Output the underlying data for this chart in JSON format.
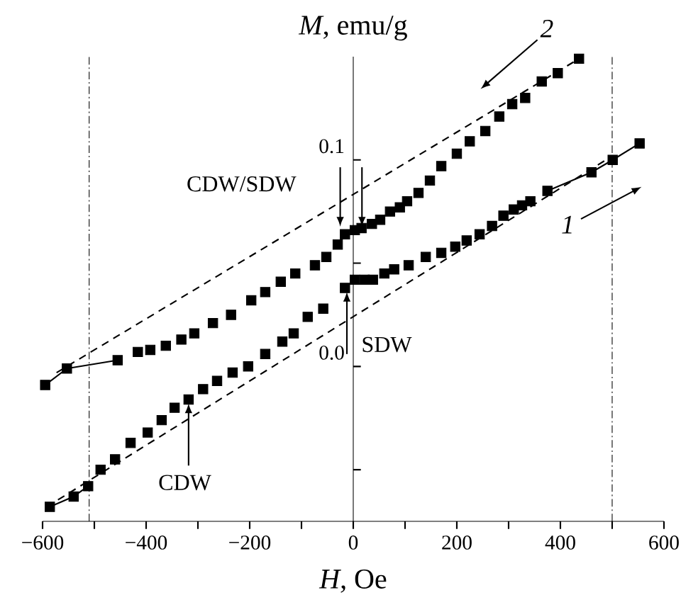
{
  "chart_data": {
    "type": "scatter",
    "xlabel": "*H*, Oe",
    "ylabel": "*M*, emu/g",
    "xlim": [
      -600,
      600
    ],
    "ylim": [
      -0.075,
      0.15
    ],
    "xticks": [
      {
        "value": -600,
        "label": "−600"
      },
      {
        "value": -500,
        "label": null
      },
      {
        "value": -400,
        "label": "−400"
      },
      {
        "value": -300,
        "label": null
      },
      {
        "value": -200,
        "label": "−200"
      },
      {
        "value": -100,
        "label": null
      },
      0,
      {
        "value": 100,
        "label": null
      },
      200,
      {
        "value": 300,
        "label": null
      },
      400,
      {
        "value": 500,
        "label": null
      },
      600
    ],
    "yticks": [
      {
        "value": -0.05,
        "label": null
      },
      {
        "value": 0,
        "label": "0.0"
      },
      {
        "value": 0.05,
        "label": null
      },
      {
        "value": 0.1,
        "label": "0.1"
      }
    ],
    "series": [
      {
        "name": "1",
        "color": "#000000",
        "marker": "square",
        "x": [
          -586,
          -540,
          -512,
          -488,
          -460,
          -430,
          -397,
          -370,
          -345,
          -318,
          -290,
          -263,
          -233,
          -203,
          -170,
          -137,
          -115,
          -88,
          -58,
          -16,
          3,
          22,
          38,
          60,
          79,
          107,
          140,
          170,
          197,
          219,
          244,
          268,
          290,
          310,
          326,
          342,
          375,
          460,
          501,
          553
        ],
        "values": [
          -0.068,
          -0.063,
          -0.058,
          -0.05,
          -0.045,
          -0.037,
          -0.032,
          -0.026,
          -0.02,
          -0.016,
          -0.011,
          -0.007,
          -0.003,
          0.0,
          0.006,
          0.012,
          0.016,
          0.024,
          0.028,
          0.038,
          0.042,
          0.042,
          0.042,
          0.045,
          0.047,
          0.049,
          0.053,
          0.055,
          0.058,
          0.061,
          0.064,
          0.068,
          0.073,
          0.076,
          0.078,
          0.08,
          0.085,
          0.094,
          0.1,
          0.108
        ]
      },
      {
        "name": "2",
        "color": "#000000",
        "marker": "square",
        "x": [
          436,
          395,
          364,
          332,
          307,
          282,
          255,
          225,
          200,
          170,
          148,
          126,
          104,
          90,
          71,
          52,
          36,
          16,
          3,
          -16,
          -30,
          -52,
          -74,
          -112,
          -140,
          -170,
          -197,
          -236,
          -271,
          -307,
          -332,
          -362,
          -392,
          -416,
          -455,
          -553,
          -595
        ],
        "values": [
          0.149,
          0.142,
          0.138,
          0.13,
          0.127,
          0.121,
          0.114,
          0.109,
          0.103,
          0.097,
          0.09,
          0.084,
          0.08,
          0.077,
          0.075,
          0.071,
          0.069,
          0.067,
          0.066,
          0.064,
          0.059,
          0.053,
          0.049,
          0.045,
          0.041,
          0.036,
          0.032,
          0.025,
          0.021,
          0.016,
          0.013,
          0.01,
          0.008,
          0.007,
          0.003,
          -0.001,
          -0.009
        ]
      },
      {
        "color": "#000000",
        "type": "line",
        "marker": "none",
        "line_style": "solid",
        "x": [
          -586,
          -540,
          -512
        ],
        "values": [
          -0.068,
          -0.063,
          -0.058
        ]
      },
      {
        "color": "#000000",
        "type": "line",
        "marker": "none",
        "line_style": "solid",
        "x": [
          375,
          460,
          501,
          553
        ],
        "values": [
          0.085,
          0.094,
          0.1,
          0.108
        ]
      },
      {
        "color": "#000000",
        "type": "line",
        "marker": "none",
        "line_style": "solid",
        "x": [
          -595,
          -553,
          -455
        ],
        "values": [
          -0.009,
          -0.001,
          0.003
        ]
      },
      {
        "color": "#000000",
        "type": "line",
        "marker": "none",
        "line_style": "dashed",
        "x": [
          -573,
          436
        ],
        "values": [
          -0.003,
          0.149
        ]
      },
      {
        "color": "#000000",
        "type": "line",
        "marker": "none",
        "line_style": "dashed",
        "x": [
          -592,
          488
        ],
        "values": [
          -0.068,
          0.1
        ]
      }
    ],
    "ref_lines": [
      {
        "axis": "x",
        "value": -510,
        "line_style": "dashdot",
        "color": "#000000"
      },
      {
        "axis": "x",
        "value": 500,
        "line_style": "dashdot",
        "color": "#000000"
      }
    ],
    "annotations": [
      "CDW/SDW",
      {
        "text": "SDW",
        "x": -5,
        "y": 0.038
      },
      {
        "text": "CDW",
        "x": -318,
        "y": -0.016
      }
    ]
  }
}
